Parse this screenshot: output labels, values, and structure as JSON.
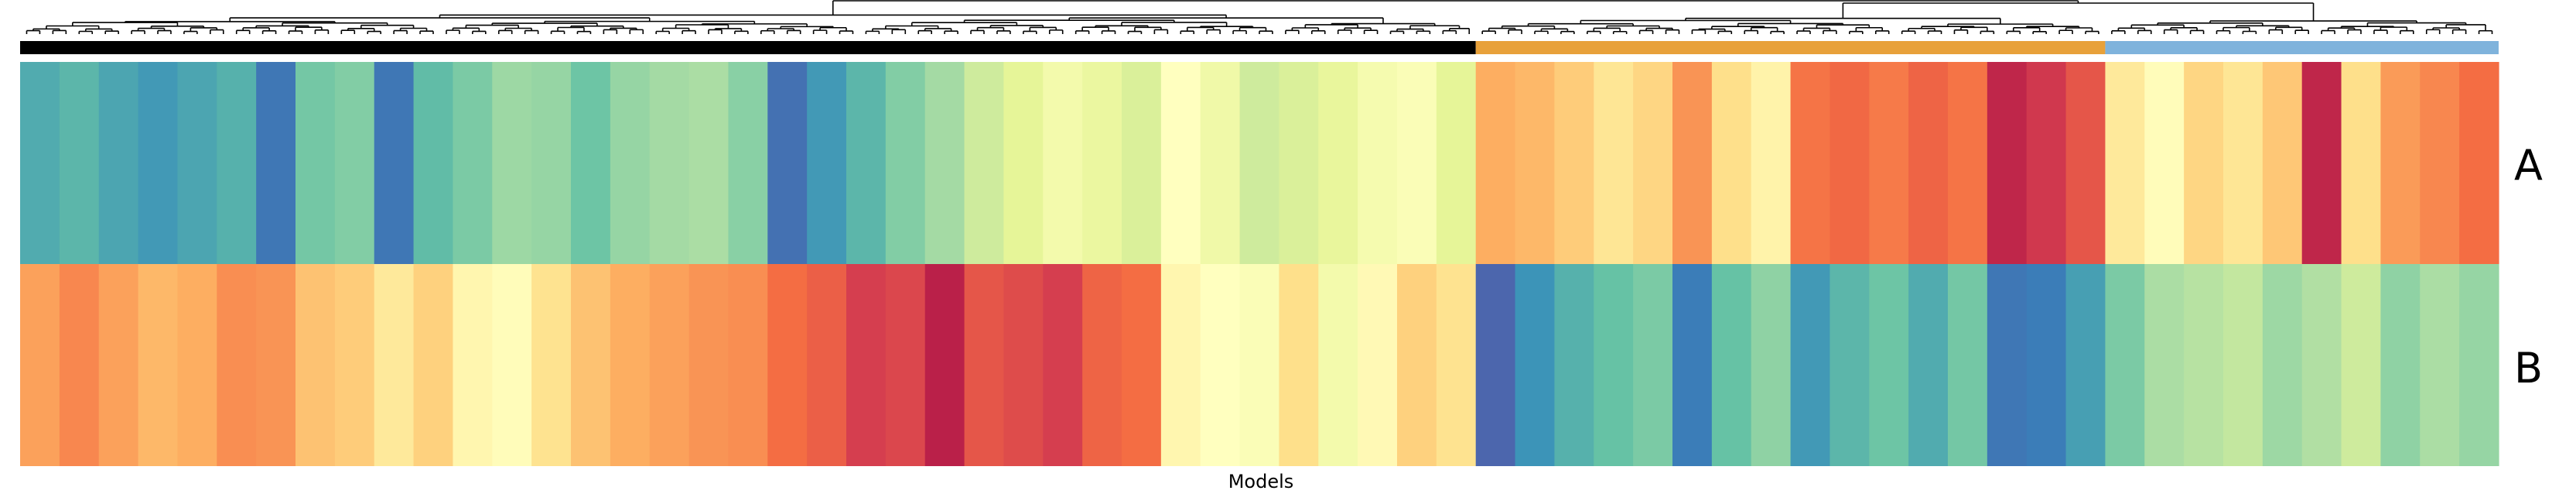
{
  "chart_data": {
    "type": "heatmap",
    "title": "",
    "xlabel": "Models",
    "ylabel": "",
    "rows": [
      "A",
      "B"
    ],
    "colormap": "Spectral",
    "value_range": [
      0,
      1
    ],
    "dendrogram": "top",
    "grid": false,
    "legend": "none",
    "clusters": [
      {
        "color": "#000000",
        "segments": [
          {
            "A": 0.84,
            "B": 0.28
          },
          {
            "A": 0.82,
            "B": 0.24
          },
          {
            "A": 0.85,
            "B": 0.28
          },
          {
            "A": 0.87,
            "B": 0.32
          },
          {
            "A": 0.85,
            "B": 0.3
          },
          {
            "A": 0.83,
            "B": 0.25
          },
          {
            "A": 0.93,
            "B": 0.26
          },
          {
            "A": 0.78,
            "B": 0.34
          },
          {
            "A": 0.76,
            "B": 0.36
          },
          {
            "A": 0.93,
            "B": 0.43
          },
          {
            "A": 0.81,
            "B": 0.37
          },
          {
            "A": 0.77,
            "B": 0.47
          },
          {
            "A": 0.72,
            "B": 0.49
          },
          {
            "A": 0.73,
            "B": 0.41
          },
          {
            "A": 0.79,
            "B": 0.34
          },
          {
            "A": 0.73,
            "B": 0.3
          },
          {
            "A": 0.71,
            "B": 0.28
          },
          {
            "A": 0.7,
            "B": 0.26
          },
          {
            "A": 0.75,
            "B": 0.25
          },
          {
            "A": 0.94,
            "B": 0.2
          },
          {
            "A": 0.87,
            "B": 0.17
          },
          {
            "A": 0.82,
            "B": 0.1
          },
          {
            "A": 0.76,
            "B": 0.12
          },
          {
            "A": 0.71,
            "B": 0.05
          },
          {
            "A": 0.64,
            "B": 0.15
          },
          {
            "A": 0.6,
            "B": 0.13
          },
          {
            "A": 0.55,
            "B": 0.1
          },
          {
            "A": 0.58,
            "B": 0.18
          },
          {
            "A": 0.62,
            "B": 0.2
          },
          {
            "A": 0.5,
            "B": 0.47
          },
          {
            "A": 0.56,
            "B": 0.5
          },
          {
            "A": 0.64,
            "B": 0.52
          },
          {
            "A": 0.62,
            "B": 0.4
          },
          {
            "A": 0.59,
            "B": 0.55
          },
          {
            "A": 0.54,
            "B": 0.48
          },
          {
            "A": 0.52,
            "B": 0.37
          },
          {
            "A": 0.6,
            "B": 0.41
          }
        ]
      },
      {
        "color": "#e8a13a",
        "segments": [
          {
            "A": 0.3,
            "B": 0.96
          },
          {
            "A": 0.32,
            "B": 0.88
          },
          {
            "A": 0.36,
            "B": 0.83
          },
          {
            "A": 0.42,
            "B": 0.8
          },
          {
            "A": 0.38,
            "B": 0.77
          },
          {
            "A": 0.26,
            "B": 0.92
          },
          {
            "A": 0.4,
            "B": 0.8
          },
          {
            "A": 0.46,
            "B": 0.74
          },
          {
            "A": 0.21,
            "B": 0.87
          },
          {
            "A": 0.19,
            "B": 0.82
          },
          {
            "A": 0.22,
            "B": 0.79
          },
          {
            "A": 0.18,
            "B": 0.84
          },
          {
            "A": 0.21,
            "B": 0.78
          },
          {
            "A": 0.06,
            "B": 0.93
          },
          {
            "A": 0.09,
            "B": 0.92
          },
          {
            "A": 0.15,
            "B": 0.86
          }
        ]
      },
      {
        "color": "#7fb3dc",
        "segments": [
          {
            "A": 0.43,
            "B": 0.77
          },
          {
            "A": 0.49,
            "B": 0.7
          },
          {
            "A": 0.38,
            "B": 0.68
          },
          {
            "A": 0.42,
            "B": 0.66
          },
          {
            "A": 0.35,
            "B": 0.72
          },
          {
            "A": 0.06,
            "B": 0.69
          },
          {
            "A": 0.4,
            "B": 0.64
          },
          {
            "A": 0.27,
            "B": 0.74
          },
          {
            "A": 0.24,
            "B": 0.7
          },
          {
            "A": 0.2,
            "B": 0.73
          }
        ]
      }
    ]
  }
}
